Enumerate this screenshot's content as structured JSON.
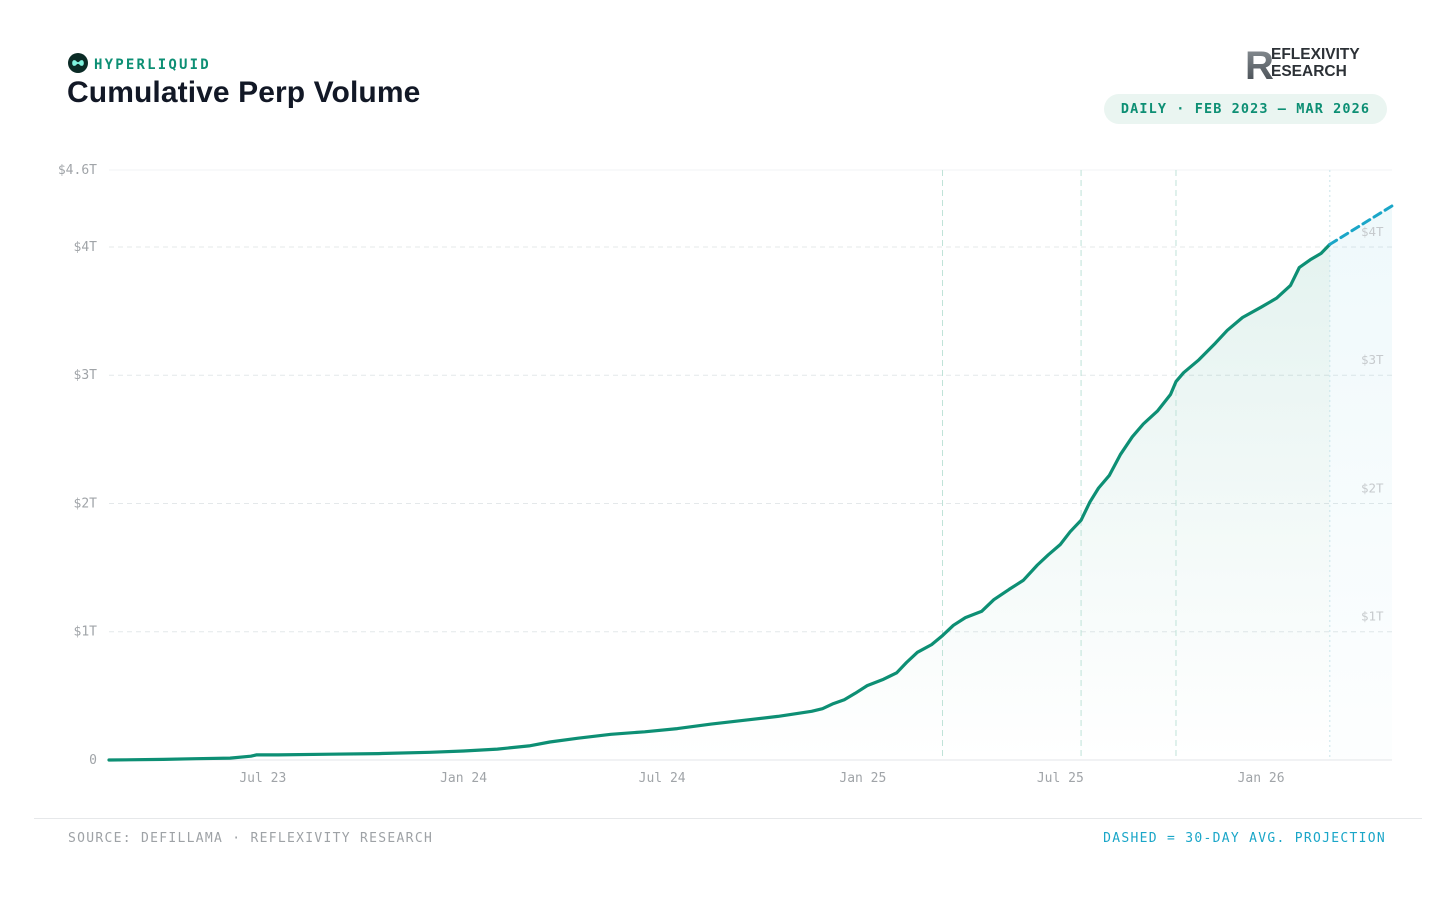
{
  "brand": {
    "name": "HYPERLIQUID",
    "logo_icon": "hyperliquid-logo-icon",
    "accent_color": "#0d8f74"
  },
  "header": {
    "title": "Cumulative Perp Volume",
    "date_range": "DAILY · FEB 2023 – MAR 2026"
  },
  "publisher": {
    "logo_line1": "EFLEXIVITY",
    "logo_line2": "ESEARCH",
    "logo_letter": "R",
    "logo_icon": "reflexivity-research-logo"
  },
  "footer": {
    "source": "SOURCE: DEFILLAMA · REFLEXIVITY RESEARCH",
    "legend": "DASHED = 30-DAY AVG. PROJECTION",
    "legend_color": "#1aa6c8"
  },
  "chart_data": {
    "type": "area",
    "title": "Cumulative Perp Volume",
    "xlabel": "",
    "ylabel": "",
    "unit": "trillion USD",
    "x_range": [
      "2023-02-10",
      "2026-05-01"
    ],
    "ylim": [
      0,
      4.6
    ],
    "grid": true,
    "y_ticks": [
      {
        "value": 0,
        "label": "0"
      },
      {
        "value": 1,
        "label": "$1T"
      },
      {
        "value": 2,
        "label": "$2T"
      },
      {
        "value": 3,
        "label": "$3T"
      },
      {
        "value": 4,
        "label": "$4T"
      },
      {
        "value": 4.6,
        "label": "$4.6T"
      }
    ],
    "x_ticks": [
      {
        "date": "2023-07-01",
        "label": "Jul 23"
      },
      {
        "date": "2024-01-01",
        "label": "Jan 24"
      },
      {
        "date": "2024-07-01",
        "label": "Jul 24"
      },
      {
        "date": "2025-01-01",
        "label": "Jan 25"
      },
      {
        "date": "2025-07-01",
        "label": "Jul 25"
      },
      {
        "date": "2026-01-01",
        "label": "Jan 26"
      }
    ],
    "right_labels": [
      {
        "value": 1,
        "label": "$1T"
      },
      {
        "value": 2,
        "label": "$2T"
      },
      {
        "value": 3,
        "label": "$3T"
      },
      {
        "value": 4,
        "label": "$4T"
      }
    ],
    "milestone_dates": [
      "2025-03-15",
      "2025-07-20",
      "2025-10-15",
      "2026-03-05"
    ],
    "series": [
      {
        "name": "Cumulative Perp Volume",
        "color": "#0d8f74",
        "points": [
          [
            "2023-02-10",
            0.0
          ],
          [
            "2023-04-01",
            0.005
          ],
          [
            "2023-05-01",
            0.01
          ],
          [
            "2023-06-01",
            0.015
          ],
          [
            "2023-06-20",
            0.03
          ],
          [
            "2023-06-25",
            0.04
          ],
          [
            "2023-07-15",
            0.04
          ],
          [
            "2023-09-01",
            0.045
          ],
          [
            "2023-10-15",
            0.05
          ],
          [
            "2023-12-01",
            0.06
          ],
          [
            "2024-01-01",
            0.07
          ],
          [
            "2024-02-01",
            0.085
          ],
          [
            "2024-03-01",
            0.11
          ],
          [
            "2024-03-20",
            0.14
          ],
          [
            "2024-04-15",
            0.17
          ],
          [
            "2024-05-15",
            0.2
          ],
          [
            "2024-06-15",
            0.22
          ],
          [
            "2024-07-15",
            0.245
          ],
          [
            "2024-08-15",
            0.28
          ],
          [
            "2024-09-15",
            0.31
          ],
          [
            "2024-10-15",
            0.34
          ],
          [
            "2024-11-15",
            0.38
          ],
          [
            "2024-11-25",
            0.4
          ],
          [
            "2024-12-05",
            0.44
          ],
          [
            "2024-12-15",
            0.47
          ],
          [
            "2024-12-25",
            0.52
          ],
          [
            "2025-01-05",
            0.58
          ],
          [
            "2025-01-20",
            0.63
          ],
          [
            "2025-02-01",
            0.68
          ],
          [
            "2025-02-10",
            0.76
          ],
          [
            "2025-02-20",
            0.84
          ],
          [
            "2025-03-05",
            0.9
          ],
          [
            "2025-03-15",
            0.97
          ],
          [
            "2025-03-25",
            1.05
          ],
          [
            "2025-04-05",
            1.11
          ],
          [
            "2025-04-20",
            1.16
          ],
          [
            "2025-05-01",
            1.25
          ],
          [
            "2025-05-15",
            1.33
          ],
          [
            "2025-05-28",
            1.4
          ],
          [
            "2025-06-10",
            1.52
          ],
          [
            "2025-06-20",
            1.6
          ],
          [
            "2025-07-01",
            1.68
          ],
          [
            "2025-07-10",
            1.78
          ],
          [
            "2025-07-20",
            1.87
          ],
          [
            "2025-07-28",
            2.01
          ],
          [
            "2025-08-05",
            2.12
          ],
          [
            "2025-08-15",
            2.22
          ],
          [
            "2025-08-25",
            2.38
          ],
          [
            "2025-09-05",
            2.52
          ],
          [
            "2025-09-15",
            2.62
          ],
          [
            "2025-09-28",
            2.72
          ],
          [
            "2025-10-10",
            2.85
          ],
          [
            "2025-10-15",
            2.95
          ],
          [
            "2025-10-22",
            3.02
          ],
          [
            "2025-11-05",
            3.12
          ],
          [
            "2025-11-20",
            3.25
          ],
          [
            "2025-12-01",
            3.35
          ],
          [
            "2025-12-15",
            3.45
          ],
          [
            "2026-01-01",
            3.53
          ],
          [
            "2026-01-15",
            3.6
          ],
          [
            "2026-01-28",
            3.7
          ],
          [
            "2026-02-05",
            3.84
          ],
          [
            "2026-02-15",
            3.9
          ],
          [
            "2026-02-25",
            3.95
          ],
          [
            "2026-03-05",
            4.02
          ]
        ]
      },
      {
        "name": "30-day avg. projection",
        "color": "#1aa6c8",
        "dashed": true,
        "points": [
          [
            "2026-03-05",
            4.02
          ],
          [
            "2026-05-01",
            4.32
          ]
        ]
      }
    ]
  }
}
